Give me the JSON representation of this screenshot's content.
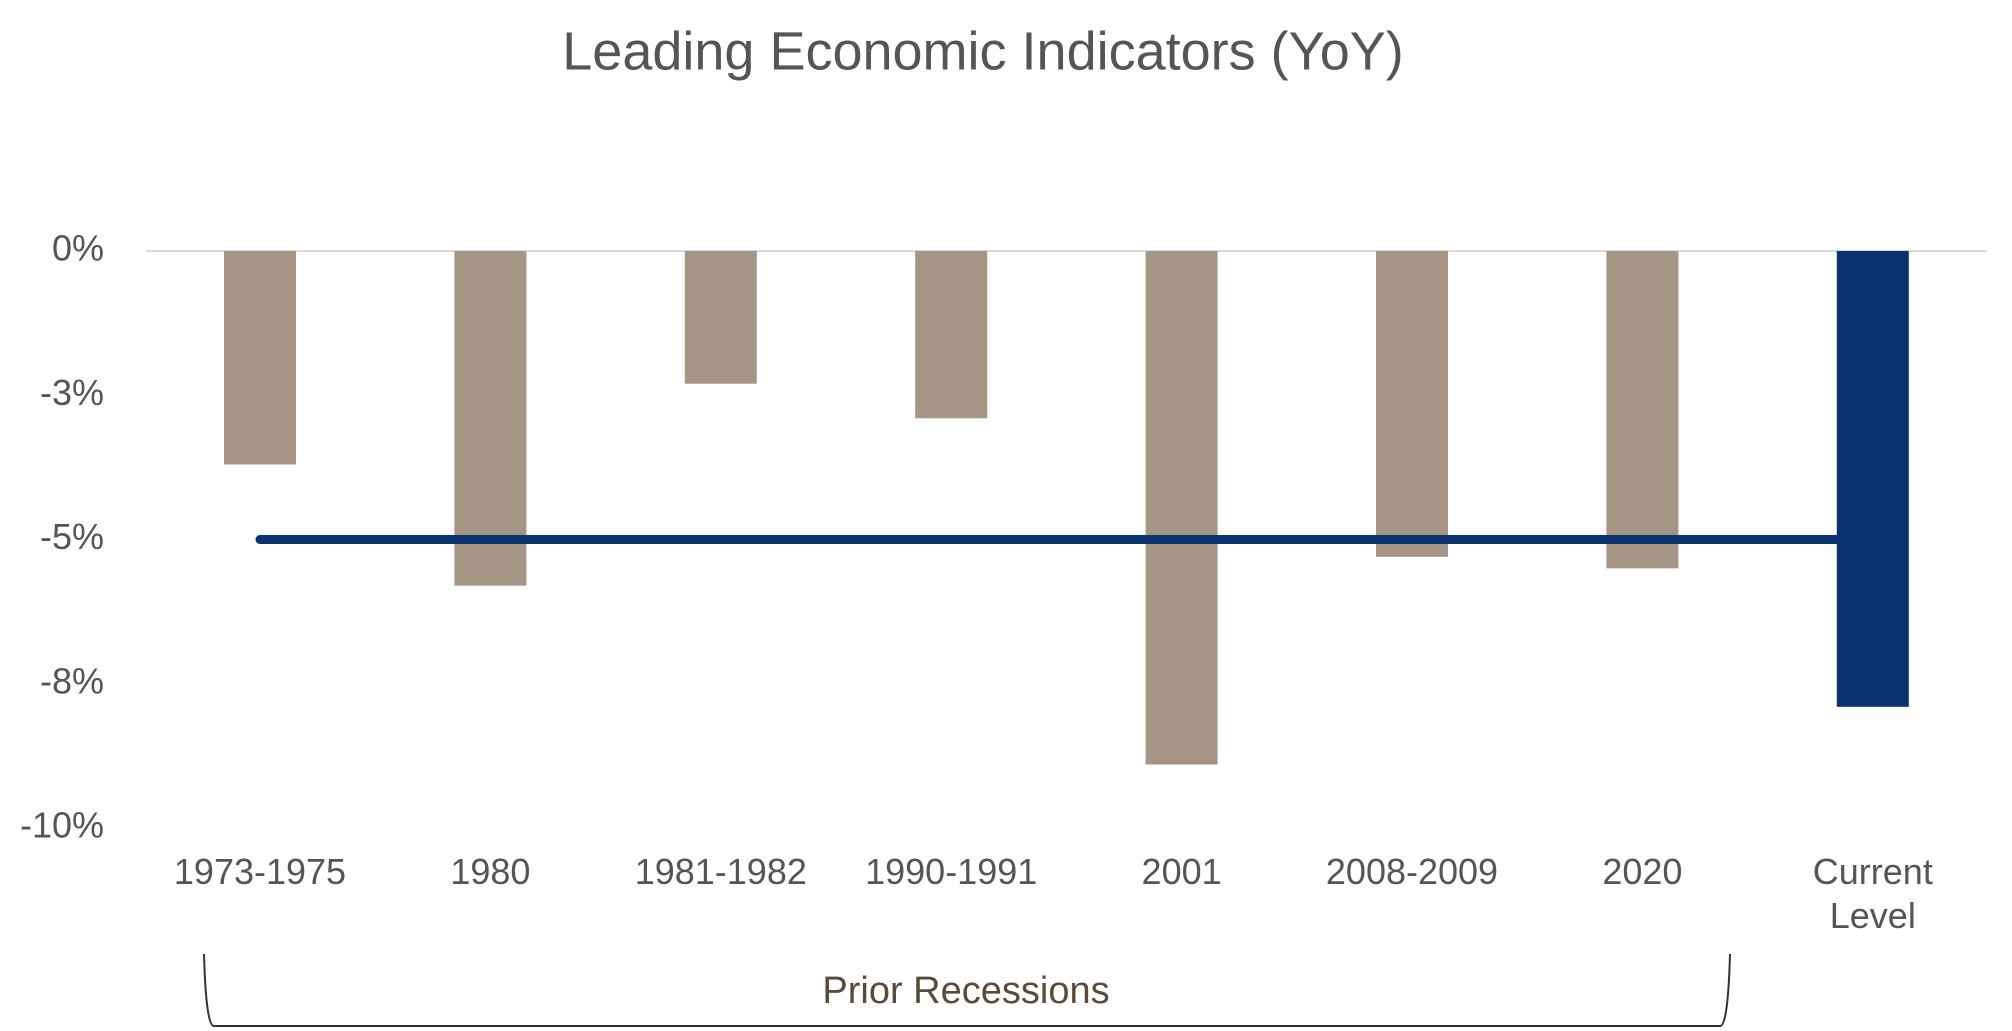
{
  "chart_data": {
    "type": "bar",
    "title": "Leading Economic Indicators (YoY)",
    "categories": [
      "1973-1975",
      "1980",
      "1981-1982",
      "1990-1991",
      "2001",
      "2008-2009",
      "2020",
      "Current Level"
    ],
    "values": [
      -3.7,
      -5.8,
      -2.3,
      -2.9,
      -8.9,
      -5.3,
      -5.5,
      -7.9
    ],
    "colors": [
      "#a69484",
      "#a69484",
      "#a69484",
      "#a69484",
      "#a69484",
      "#a69484",
      "#a69484",
      "#08336f"
    ],
    "line_values": [
      -5,
      -5,
      -5,
      -5,
      -5,
      -5,
      -5,
      -5
    ],
    "line_color": "#08336f",
    "ylim": [
      -10,
      0
    ],
    "yticks": [
      {
        "value": 0,
        "label": "0%"
      },
      {
        "value": -2.5,
        "label": "-3%"
      },
      {
        "value": -5,
        "label": "-5%"
      },
      {
        "value": -7.5,
        "label": "-8%"
      },
      {
        "value": -10,
        "label": "-10%"
      }
    ],
    "grid": false,
    "annotation": "Prior Recessions"
  }
}
